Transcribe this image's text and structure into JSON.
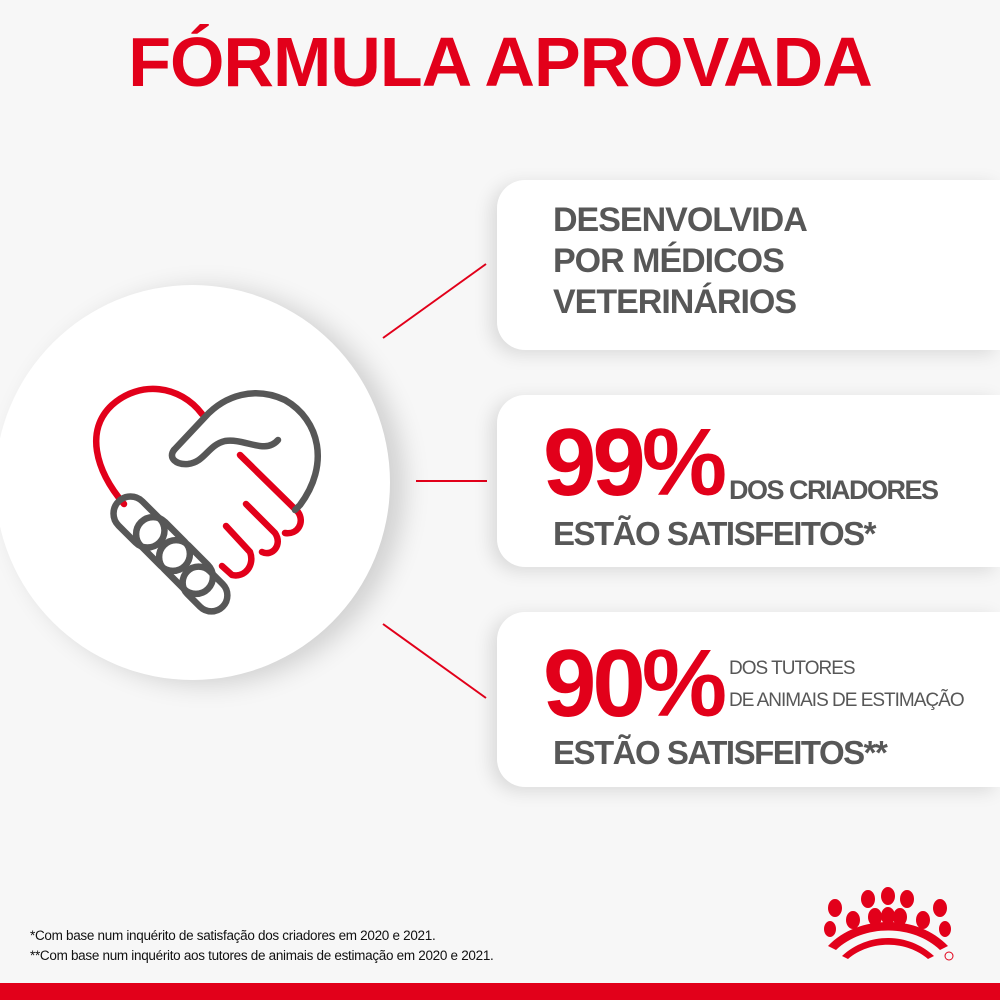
{
  "title": "FÓRMULA APROVADA",
  "colors": {
    "brand_red": "#e2001a",
    "text_gray": "#575757"
  },
  "cards": [
    {
      "lines": [
        "DESENVOLVIDA",
        "POR MÉDICOS",
        "VETERINÁRIOS"
      ]
    },
    {
      "stat": "99%",
      "stat_label": "DOS CRIADORES",
      "line2": "ESTÃO SATISFEITOS*"
    },
    {
      "stat": "90%",
      "stat_label_1": "DOS TUTORES",
      "stat_label_2": "DE ANIMAIS DE ESTIMAÇÃO",
      "line2": "ESTÃO SATISFEITOS**"
    }
  ],
  "footnotes": [
    "*Com base num inquérito de satisfação dos criadores em 2020 e 2021.",
    "**Com base num inquérito aos tutores de animais de estimação em 2020 e 2021."
  ],
  "icons": {
    "main": "handshake-heart-icon",
    "logo": "royal-canin-crown-logo"
  }
}
